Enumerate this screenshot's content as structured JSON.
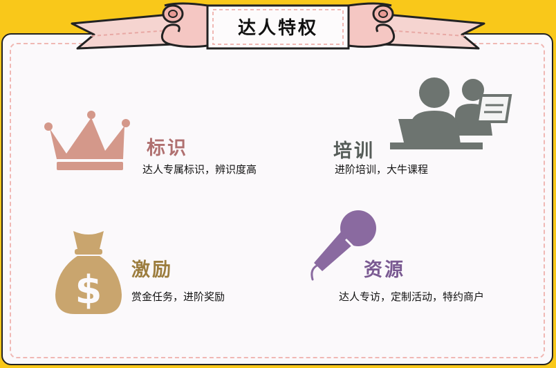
{
  "banner": {
    "title": "达人特权"
  },
  "features": [
    {
      "title": "标识",
      "desc": "达人专属标识，辨识度高",
      "icon": "crown-icon",
      "color": "#d4988a"
    },
    {
      "title": "培训",
      "desc": "进阶培训，大牛课程",
      "icon": "training-icon",
      "color": "#6d7470"
    },
    {
      "title": "激励",
      "desc": "赏金任务，进阶奖励",
      "icon": "money-bag-icon",
      "color": "#c9a56e"
    },
    {
      "title": "资源",
      "desc": "达人专访，定制活动，特约商户",
      "icon": "microphone-icon",
      "color": "#8a6aa0"
    }
  ],
  "colors": {
    "background": "#f9c81a",
    "card": "#fbf9fb",
    "ribbon_pink": "#f5c7c3",
    "dash": "#f0b8b4"
  }
}
